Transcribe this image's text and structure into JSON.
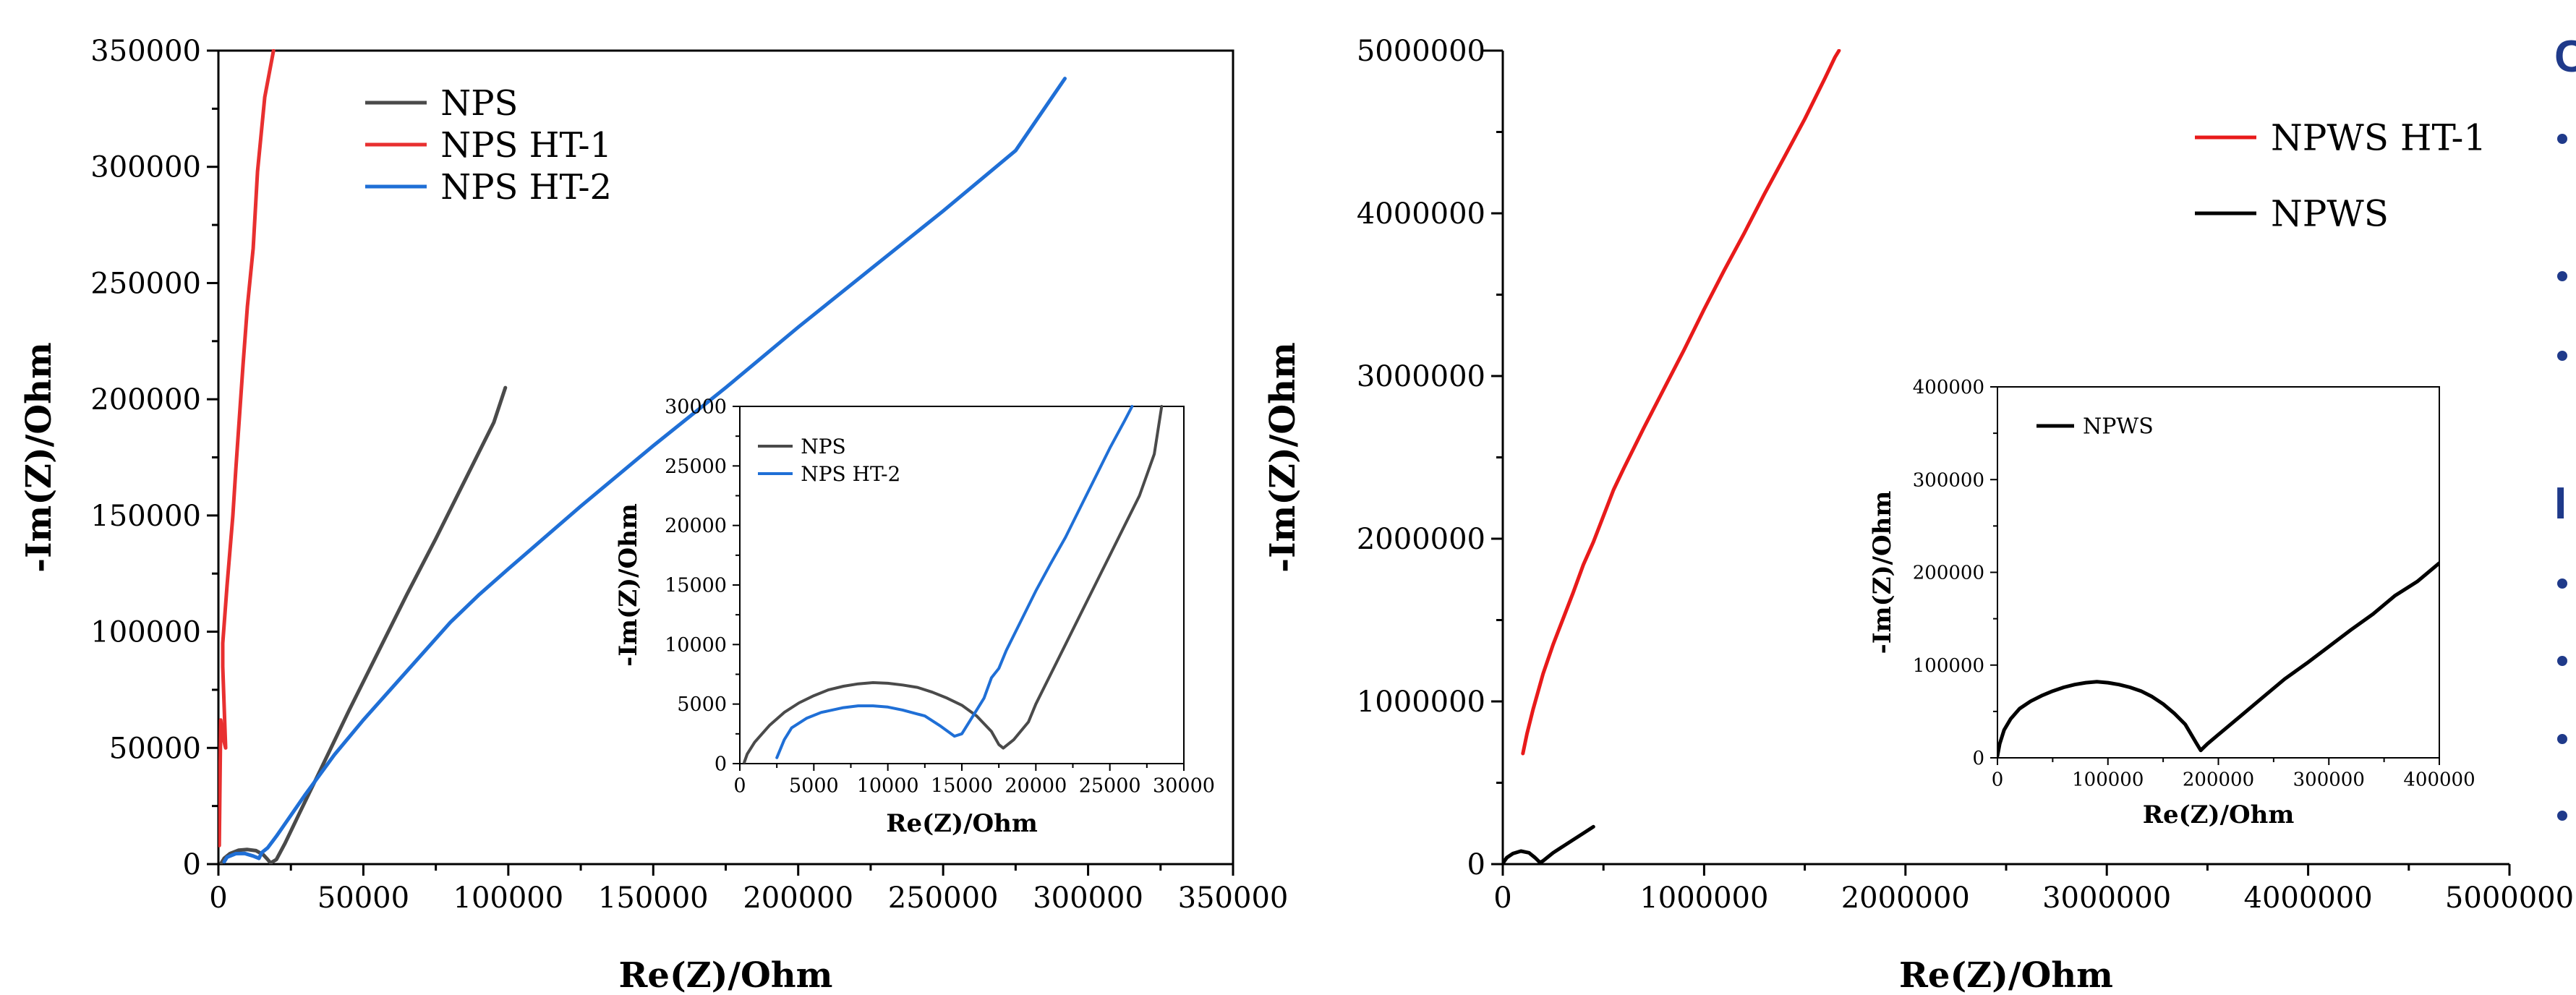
{
  "chart_data": [
    {
      "id": "left-main",
      "type": "line",
      "xlabel": "Re(Z)/Ohm",
      "ylabel": "-Im(Z)/Ohm",
      "xlim": [
        0,
        350000
      ],
      "ylim": [
        0,
        350000
      ],
      "xticks": [
        0,
        50000,
        100000,
        150000,
        200000,
        250000,
        300000,
        350000
      ],
      "yticks": [
        0,
        50000,
        100000,
        150000,
        200000,
        250000,
        300000,
        350000
      ],
      "legend_position": "top-left",
      "series": [
        {
          "name": "NPS",
          "color": "#4a4a4a",
          "points": [
            [
              1000,
              500
            ],
            [
              2000,
              2500
            ],
            [
              4000,
              4500
            ],
            [
              7000,
              6000
            ],
            [
              10000,
              6300
            ],
            [
              13000,
              5800
            ],
            [
              15500,
              4000
            ],
            [
              17000,
              2000
            ],
            [
              18000,
              500
            ],
            [
              20000,
              2000
            ],
            [
              23000,
              9000
            ],
            [
              28000,
              22000
            ],
            [
              35000,
              40000
            ],
            [
              45000,
              66000
            ],
            [
              55000,
              91000
            ],
            [
              65000,
              116000
            ],
            [
              75000,
              140000
            ],
            [
              85000,
              165000
            ],
            [
              95000,
              190000
            ],
            [
              99000,
              205000
            ]
          ]
        },
        {
          "name": "NPS HT-1",
          "color": "#e83030",
          "points": [
            [
              300,
              8000
            ],
            [
              500,
              30000
            ],
            [
              800,
              62000
            ],
            [
              1500,
              55000
            ],
            [
              2500,
              50000
            ],
            [
              1500,
              85000
            ],
            [
              1500,
              95000
            ],
            [
              3000,
              120000
            ],
            [
              5000,
              150000
            ],
            [
              6000,
              170000
            ],
            [
              8500,
              215000
            ],
            [
              10000,
              240000
            ],
            [
              12000,
              265000
            ],
            [
              13500,
              298000
            ],
            [
              16000,
              330000
            ],
            [
              19000,
              350000
            ]
          ]
        },
        {
          "name": "NPS HT-2",
          "color": "#1f6fd6",
          "points": [
            [
              2000,
              1000
            ],
            [
              3000,
              3000
            ],
            [
              6000,
              4500
            ],
            [
              9000,
              4600
            ],
            [
              12000,
              3500
            ],
            [
              14000,
              2500
            ],
            [
              15000,
              5000
            ],
            [
              17000,
              7000
            ],
            [
              20000,
              12000
            ],
            [
              30000,
              30000
            ],
            [
              40000,
              47000
            ],
            [
              50000,
              62000
            ],
            [
              60000,
              76000
            ],
            [
              70000,
              90000
            ],
            [
              80000,
              104000
            ],
            [
              90000,
              116000
            ],
            [
              100000,
              127000
            ],
            [
              125000,
              154000
            ],
            [
              150000,
              180000
            ],
            [
              175000,
              205000
            ],
            [
              200000,
              231000
            ],
            [
              225000,
              256000
            ],
            [
              250000,
              281000
            ],
            [
              275000,
              307000
            ],
            [
              292000,
              338000
            ]
          ]
        }
      ]
    },
    {
      "id": "left-inset",
      "type": "line",
      "xlabel": "Re(Z)/Ohm",
      "ylabel": "-Im(Z)/Ohm",
      "xlim": [
        0,
        30000
      ],
      "ylim": [
        0,
        30000
      ],
      "xticks": [
        0,
        5000,
        10000,
        15000,
        20000,
        25000,
        30000
      ],
      "yticks": [
        0,
        5000,
        10000,
        15000,
        20000,
        25000,
        30000
      ],
      "legend_position": "top-left",
      "series": [
        {
          "name": "NPS",
          "color": "#4a4a4a",
          "points": [
            [
              300,
              100
            ],
            [
              500,
              800
            ],
            [
              1000,
              1800
            ],
            [
              2000,
              3200
            ],
            [
              3000,
              4300
            ],
            [
              4000,
              5100
            ],
            [
              5000,
              5700
            ],
            [
              6000,
              6200
            ],
            [
              7000,
              6500
            ],
            [
              8000,
              6700
            ],
            [
              9000,
              6800
            ],
            [
              10000,
              6750
            ],
            [
              11000,
              6600
            ],
            [
              12000,
              6400
            ],
            [
              13000,
              6000
            ],
            [
              14000,
              5500
            ],
            [
              15000,
              4900
            ],
            [
              16000,
              4000
            ],
            [
              17000,
              2700
            ],
            [
              17500,
              1600
            ],
            [
              17800,
              1300
            ],
            [
              18500,
              2000
            ],
            [
              19500,
              3500
            ],
            [
              20000,
              5000
            ],
            [
              21000,
              7500
            ],
            [
              22000,
              10000
            ],
            [
              23000,
              12500
            ],
            [
              24000,
              15000
            ],
            [
              25000,
              17500
            ],
            [
              26000,
              20000
            ],
            [
              27000,
              22500
            ],
            [
              28000,
              26000
            ],
            [
              28500,
              30000
            ]
          ]
        },
        {
          "name": "NPS HT-2",
          "color": "#1f6fd6",
          "points": [
            [
              2500,
              500
            ],
            [
              3000,
              2000
            ],
            [
              3500,
              3000
            ],
            [
              4500,
              3800
            ],
            [
              5500,
              4300
            ],
            [
              7000,
              4700
            ],
            [
              8000,
              4850
            ],
            [
              9000,
              4850
            ],
            [
              10000,
              4750
            ],
            [
              11000,
              4500
            ],
            [
              12500,
              4000
            ],
            [
              13500,
              3200
            ],
            [
              14500,
              2300
            ],
            [
              15000,
              2500
            ],
            [
              15500,
              3500
            ],
            [
              16000,
              4500
            ],
            [
              16500,
              5500
            ],
            [
              17000,
              7200
            ],
            [
              17500,
              8000
            ],
            [
              18000,
              9500
            ],
            [
              19000,
              12000
            ],
            [
              20000,
              14500
            ],
            [
              21000,
              16800
            ],
            [
              22000,
              19000
            ],
            [
              23000,
              21500
            ],
            [
              24000,
              24000
            ],
            [
              25000,
              26500
            ],
            [
              26000,
              28800
            ],
            [
              26500,
              30000
            ]
          ]
        }
      ]
    },
    {
      "id": "right-main",
      "type": "line",
      "xlabel": "Re(Z)/Ohm",
      "ylabel": "-Im(Z)/Ohm",
      "xlim": [
        0,
        5000000
      ],
      "ylim": [
        0,
        5000000
      ],
      "xticks": [
        0,
        1000000,
        2000000,
        3000000,
        4000000,
        5000000
      ],
      "yticks": [
        0,
        1000000,
        2000000,
        3000000,
        4000000,
        5000000
      ],
      "legend_position": "top-right",
      "series": [
        {
          "name": "NPWS HT-1",
          "color": "#e81a1a",
          "points": [
            [
              100000,
              680000
            ],
            [
              120000,
              800000
            ],
            [
              150000,
              950000
            ],
            [
              200000,
              1170000
            ],
            [
              250000,
              1350000
            ],
            [
              300000,
              1510000
            ],
            [
              350000,
              1670000
            ],
            [
              400000,
              1840000
            ],
            [
              450000,
              1980000
            ],
            [
              500000,
              2140000
            ],
            [
              550000,
              2300000
            ],
            [
              600000,
              2430000
            ],
            [
              700000,
              2680000
            ],
            [
              800000,
              2920000
            ],
            [
              900000,
              3160000
            ],
            [
              1000000,
              3410000
            ],
            [
              1100000,
              3650000
            ],
            [
              1200000,
              3880000
            ],
            [
              1300000,
              4120000
            ],
            [
              1400000,
              4350000
            ],
            [
              1500000,
              4580000
            ],
            [
              1600000,
              4830000
            ],
            [
              1650000,
              4960000
            ],
            [
              1670000,
              5000000
            ]
          ]
        },
        {
          "name": "NPWS",
          "color": "#000000",
          "points": [
            [
              0,
              5000
            ],
            [
              20000,
              40000
            ],
            [
              50000,
              65000
            ],
            [
              90000,
              80000
            ],
            [
              130000,
              70000
            ],
            [
              160000,
              40000
            ],
            [
              185000,
              10000
            ],
            [
              200000,
              20000
            ],
            [
              250000,
              70000
            ],
            [
              300000,
              110000
            ],
            [
              350000,
              150000
            ],
            [
              400000,
              190000
            ],
            [
              450000,
              230000
            ]
          ]
        }
      ]
    },
    {
      "id": "right-inset",
      "type": "line",
      "xlabel": "Re(Z)/Ohm",
      "ylabel": "-Im(Z)/Ohm",
      "xlim": [
        0,
        400000
      ],
      "ylim": [
        0,
        400000
      ],
      "xticks": [
        0,
        100000,
        200000,
        300000,
        400000
      ],
      "yticks": [
        0,
        100000,
        200000,
        300000,
        400000
      ],
      "legend_position": "top-left",
      "series": [
        {
          "name": "NPWS",
          "color": "#000000",
          "points": [
            [
              0,
              2000
            ],
            [
              2000,
              15000
            ],
            [
              6000,
              30000
            ],
            [
              12000,
              42000
            ],
            [
              20000,
              53000
            ],
            [
              30000,
              61000
            ],
            [
              40000,
              67000
            ],
            [
              50000,
              72000
            ],
            [
              60000,
              76000
            ],
            [
              70000,
              79000
            ],
            [
              80000,
              81000
            ],
            [
              90000,
              82000
            ],
            [
              100000,
              81000
            ],
            [
              110000,
              79000
            ],
            [
              120000,
              76000
            ],
            [
              130000,
              72000
            ],
            [
              140000,
              66000
            ],
            [
              150000,
              58000
            ],
            [
              160000,
              48000
            ],
            [
              170000,
              36000
            ],
            [
              180000,
              16000
            ],
            [
              184000,
              8000
            ],
            [
              190000,
              15000
            ],
            [
              200000,
              25000
            ],
            [
              220000,
              45000
            ],
            [
              240000,
              65000
            ],
            [
              260000,
              85000
            ],
            [
              280000,
              102000
            ],
            [
              300000,
              120000
            ],
            [
              320000,
              138000
            ],
            [
              340000,
              155000
            ],
            [
              360000,
              175000
            ],
            [
              380000,
              190000
            ],
            [
              400000,
              210000
            ]
          ]
        }
      ]
    }
  ],
  "side_panel": {
    "heading_1": "C",
    "heading_2": "I",
    "bullet_color": "#1f3a8a"
  }
}
